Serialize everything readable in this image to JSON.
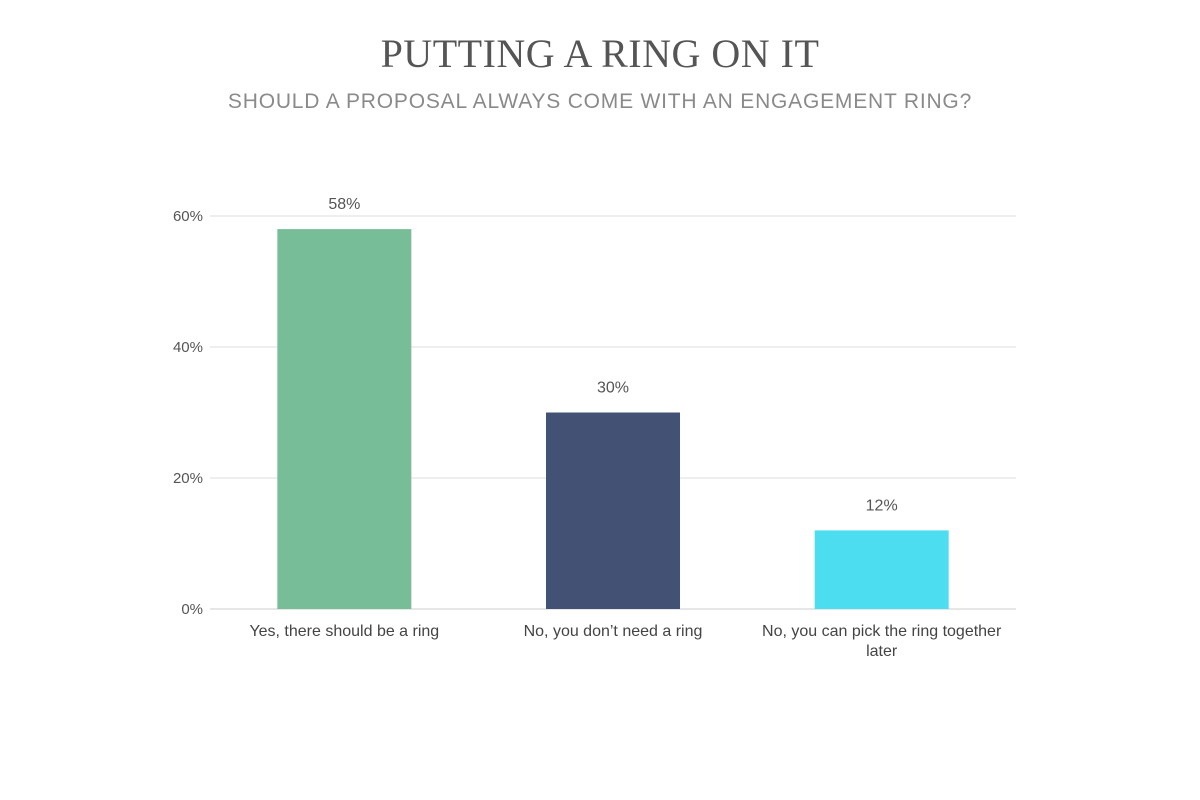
{
  "chart_data": {
    "type": "bar",
    "title": "PUTTING A RING ON IT",
    "subtitle": "SHOULD A PROPOSAL ALWAYS COME WITH AN ENGAGEMENT RING?",
    "categories": [
      "Yes, there should be a ring",
      "No, you don’t need a ring",
      "No, you can pick the ring together later"
    ],
    "values": [
      58,
      30,
      12
    ],
    "value_labels": [
      "58%",
      "30%",
      "12%"
    ],
    "colors": [
      "#77be98",
      "#435174",
      "#4cddf0"
    ],
    "yticks": [
      0,
      20,
      40,
      60
    ],
    "ytick_labels": [
      "0%",
      "20%",
      "40%",
      "60%"
    ],
    "ylim": [
      0,
      60
    ],
    "grid": true
  }
}
